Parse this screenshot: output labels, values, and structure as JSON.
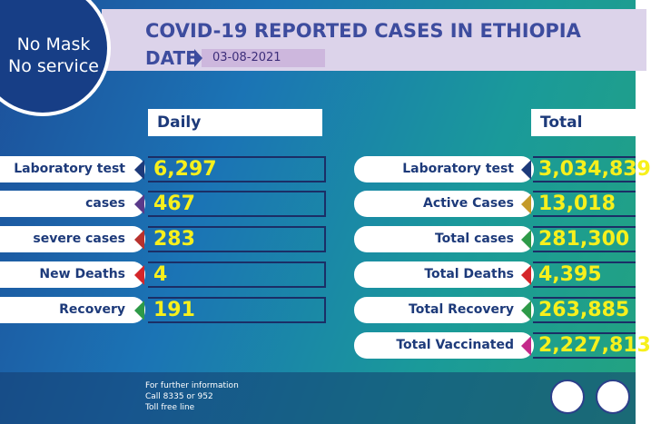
{
  "slogan": [
    "No Mask",
    "No service"
  ],
  "header": {
    "title": "COVID-19 REPORTED CASES IN ETHIOPIA",
    "date_label": "DATE",
    "date": "03-08-2021"
  },
  "daily": {
    "heading": "Daily",
    "rows": [
      {
        "label": "Laboratory test",
        "value": "6,297"
      },
      {
        "label": "cases",
        "value": "467"
      },
      {
        "label": "severe cases",
        "value": "283"
      },
      {
        "label": "New Deaths",
        "value": "4"
      },
      {
        "label": "Recovery",
        "value": "191"
      }
    ]
  },
  "total": {
    "heading": "Total",
    "rows": [
      {
        "label": "Laboratory test",
        "value": "3,034,839"
      },
      {
        "label": "Active Cases",
        "value": "13,018"
      },
      {
        "label": "Total cases",
        "value": "281,300"
      },
      {
        "label": "Total Deaths",
        "value": "4,395"
      },
      {
        "label": "Total Recovery",
        "value": "263,885"
      },
      {
        "label": "Total Vaccinated",
        "value": "2,227,813"
      }
    ]
  },
  "footer": [
    "For further information",
    "Call 8335 or 952",
    "Toll free line"
  ]
}
